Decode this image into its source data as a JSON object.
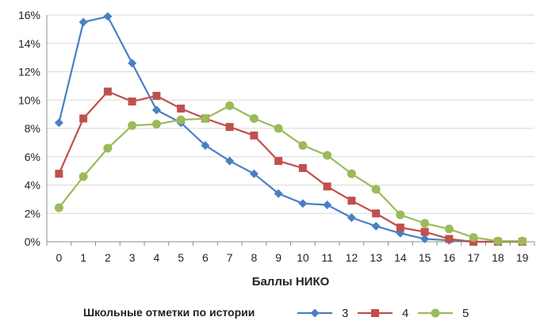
{
  "chart_data": {
    "type": "line",
    "title": "",
    "xlabel": "Баллы НИКО",
    "ylabel": "",
    "x": [
      0,
      1,
      2,
      3,
      4,
      5,
      6,
      7,
      8,
      9,
      10,
      11,
      12,
      13,
      14,
      15,
      16,
      17,
      18,
      19
    ],
    "ylim": [
      0,
      16
    ],
    "ytick_step": 2,
    "ytick_suffix": "%",
    "grid": "horizontal",
    "legend_title": "Школьные отметки по истории",
    "legend_position": "bottom",
    "series": [
      {
        "name": "3",
        "color": "#4a7fc4",
        "marker": "diamond",
        "values": [
          8.4,
          15.5,
          15.9,
          12.6,
          9.3,
          8.4,
          6.8,
          5.7,
          4.8,
          3.4,
          2.7,
          2.6,
          1.7,
          1.1,
          0.6,
          0.2,
          0.1,
          0,
          0,
          0
        ]
      },
      {
        "name": "4",
        "color": "#c0504d",
        "marker": "square",
        "values": [
          4.8,
          8.7,
          10.6,
          9.9,
          10.3,
          9.4,
          8.7,
          8.1,
          7.5,
          5.7,
          5.2,
          3.9,
          2.9,
          2.0,
          1.0,
          0.7,
          0.2,
          0,
          0,
          0
        ]
      },
      {
        "name": "5",
        "color": "#9bbb59",
        "marker": "circle",
        "values": [
          2.4,
          4.6,
          6.6,
          8.2,
          8.3,
          8.6,
          8.7,
          9.6,
          8.7,
          8.0,
          6.8,
          6.1,
          4.8,
          3.7,
          1.9,
          1.3,
          0.9,
          0.3,
          0.05,
          0.05
        ]
      }
    ]
  }
}
